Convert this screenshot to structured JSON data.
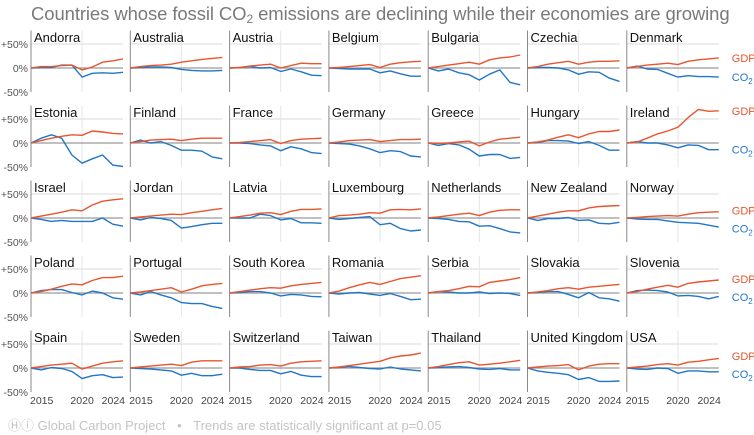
{
  "chart_data": {
    "type": "line",
    "title_pre": "Countries whose fossil CO",
    "title_sub": "2",
    "title_post": " emissions are declining while their economies are growing",
    "years": [
      2015,
      2016,
      2017,
      2018,
      2019,
      2020,
      2021,
      2022,
      2023,
      2024
    ],
    "ylim": [
      -50,
      80
    ],
    "yticks": [
      {
        "value": 50,
        "label": "+50%"
      },
      {
        "value": 0,
        "label": "0%"
      },
      {
        "value": -50,
        "label": "-50%"
      }
    ],
    "xticks": [
      {
        "value": 2015,
        "label": "2015"
      },
      {
        "value": 2020,
        "label": "2020"
      },
      {
        "value": 2024,
        "label": "2024"
      }
    ],
    "grid": true,
    "legend": {
      "gdp": "GDP",
      "co2": "CO",
      "co2_sub": "2",
      "placement": "right of each row"
    },
    "colors": {
      "gdp": "#e8552e",
      "co2": "#2176c7",
      "grid": "#e6e6e6",
      "zero": "#9a9a9a",
      "axis": "#8a8a8a"
    },
    "panels": [
      {
        "country": "Andorra",
        "gdp": [
          0,
          3,
          3,
          5,
          6,
          -4,
          2,
          12,
          15,
          19
        ],
        "co2": [
          0,
          1,
          1,
          6,
          6,
          -19,
          -11,
          -10,
          -11,
          -9
        ]
      },
      {
        "country": "Australia",
        "gdp": [
          0,
          3,
          5,
          6,
          8,
          12,
          15,
          18,
          20,
          22
        ],
        "co2": [
          0,
          1,
          2,
          2,
          1,
          -3,
          -5,
          -6,
          -6,
          -5
        ]
      },
      {
        "country": "Austria",
        "gdp": [
          0,
          1,
          4,
          6,
          8,
          0,
          5,
          10,
          9,
          9
        ],
        "co2": [
          0,
          1,
          3,
          0,
          1,
          -7,
          -2,
          -8,
          -15,
          -16
        ]
      },
      {
        "country": "Belgium",
        "gdp": [
          0,
          1,
          3,
          5,
          7,
          1,
          8,
          11,
          13,
          14
        ],
        "co2": [
          0,
          -1,
          -2,
          -2,
          -2,
          -10,
          -6,
          -12,
          -17,
          -17
        ]
      },
      {
        "country": "Bulgaria",
        "gdp": [
          0,
          3,
          6,
          9,
          12,
          8,
          17,
          21,
          23,
          27
        ],
        "co2": [
          0,
          -6,
          -2,
          -10,
          -14,
          -25,
          -13,
          -4,
          -30,
          -35
        ]
      },
      {
        "country": "Czechia",
        "gdp": [
          0,
          3,
          8,
          11,
          14,
          8,
          12,
          14,
          14,
          15
        ],
        "co2": [
          0,
          1,
          1,
          0,
          -4,
          -13,
          -8,
          -9,
          -21,
          -28
        ]
      },
      {
        "country": "Denmark",
        "gdp": [
          0,
          3,
          6,
          8,
          10,
          7,
          14,
          17,
          19,
          21
        ],
        "co2": [
          0,
          4,
          -2,
          -3,
          -11,
          -19,
          -16,
          -18,
          -18,
          -19
        ]
      },
      {
        "country": "Estonia",
        "gdp": [
          0,
          5,
          10,
          14,
          17,
          16,
          25,
          23,
          20,
          19
        ],
        "co2": [
          0,
          10,
          17,
          10,
          -25,
          -42,
          -33,
          -25,
          -46,
          -49
        ]
      },
      {
        "country": "Finland",
        "gdp": [
          0,
          3,
          6,
          7,
          8,
          5,
          8,
          10,
          10,
          10
        ],
        "co2": [
          0,
          6,
          0,
          3,
          -5,
          -15,
          -15,
          -17,
          -29,
          -33
        ]
      },
      {
        "country": "France",
        "gdp": [
          0,
          1,
          3,
          5,
          7,
          -1,
          5,
          8,
          9,
          10
        ],
        "co2": [
          0,
          0,
          -1,
          -4,
          -6,
          -16,
          -8,
          -12,
          -20,
          -22
        ]
      },
      {
        "country": "Germany",
        "gdp": [
          0,
          2,
          5,
          6,
          7,
          3,
          5,
          7,
          7,
          8
        ],
        "co2": [
          0,
          -1,
          -2,
          -6,
          -12,
          -20,
          -16,
          -18,
          -27,
          -29
        ]
      },
      {
        "country": "Greece",
        "gdp": [
          0,
          -1,
          0,
          2,
          4,
          -6,
          2,
          8,
          10,
          12
        ],
        "co2": [
          0,
          -5,
          -1,
          -4,
          -13,
          -27,
          -24,
          -24,
          -32,
          -30
        ]
      },
      {
        "country": "Hungary",
        "gdp": [
          0,
          2,
          6,
          12,
          17,
          11,
          19,
          24,
          24,
          27
        ],
        "co2": [
          0,
          1,
          5,
          5,
          4,
          -1,
          3,
          -5,
          -15,
          -15
        ]
      },
      {
        "country": "Ireland",
        "gdp": [
          0,
          2,
          10,
          19,
          25,
          33,
          53,
          70,
          66,
          67
        ],
        "co2": [
          0,
          3,
          0,
          0,
          -4,
          -10,
          -4,
          -5,
          -14,
          -14
        ]
      },
      {
        "country": "Israel",
        "gdp": [
          0,
          4,
          8,
          12,
          17,
          15,
          27,
          35,
          38,
          40
        ],
        "co2": [
          0,
          -3,
          -7,
          -5,
          -7,
          -7,
          -7,
          0,
          -13,
          -17
        ]
      },
      {
        "country": "Jordan",
        "gdp": [
          0,
          2,
          4,
          6,
          8,
          7,
          11,
          14,
          17,
          20
        ],
        "co2": [
          0,
          -4,
          1,
          -1,
          -5,
          -21,
          -18,
          -14,
          -11,
          -11
        ]
      },
      {
        "country": "Latvia",
        "gdp": [
          0,
          3,
          6,
          10,
          11,
          7,
          14,
          18,
          18,
          19
        ],
        "co2": [
          0,
          0,
          0,
          8,
          5,
          -4,
          -1,
          -10,
          -10,
          -11
        ]
      },
      {
        "country": "Luxembourg",
        "gdp": [
          0,
          5,
          6,
          8,
          11,
          10,
          17,
          18,
          17,
          19
        ],
        "co2": [
          0,
          -3,
          -1,
          1,
          3,
          -14,
          -11,
          -22,
          -27,
          -25
        ]
      },
      {
        "country": "Netherlands",
        "gdp": [
          0,
          2,
          5,
          8,
          10,
          5,
          12,
          16,
          17,
          17
        ],
        "co2": [
          0,
          -1,
          -3,
          -7,
          -8,
          -17,
          -16,
          -22,
          -29,
          -31
        ]
      },
      {
        "country": "New Zealand",
        "gdp": [
          0,
          4,
          8,
          12,
          15,
          15,
          21,
          24,
          25,
          26
        ],
        "co2": [
          0,
          -5,
          -1,
          -1,
          1,
          -5,
          -4,
          -11,
          -12,
          -9
        ]
      },
      {
        "country": "Norway",
        "gdp": [
          0,
          1,
          3,
          4,
          5,
          4,
          8,
          11,
          12,
          13
        ],
        "co2": [
          0,
          -2,
          -3,
          -3,
          -6,
          -9,
          -10,
          -11,
          -15,
          -19
        ]
      },
      {
        "country": "Poland",
        "gdp": [
          0,
          3,
          8,
          14,
          19,
          17,
          26,
          32,
          32,
          35
        ],
        "co2": [
          0,
          5,
          7,
          7,
          1,
          -4,
          4,
          0,
          -10,
          -13
        ]
      },
      {
        "country": "Portugal",
        "gdp": [
          0,
          2,
          5,
          8,
          11,
          2,
          8,
          15,
          18,
          20
        ],
        "co2": [
          0,
          -4,
          3,
          -4,
          -10,
          -20,
          -22,
          -22,
          -28,
          -32
        ]
      },
      {
        "country": "South Korea",
        "gdp": [
          0,
          3,
          6,
          9,
          11,
          10,
          15,
          18,
          20,
          22
        ],
        "co2": [
          0,
          1,
          3,
          3,
          0,
          -6,
          -3,
          -4,
          -7,
          -8
        ]
      },
      {
        "country": "Romania",
        "gdp": [
          0,
          4,
          11,
          17,
          22,
          18,
          24,
          30,
          33,
          36
        ],
        "co2": [
          0,
          -2,
          0,
          1,
          -2,
          -5,
          -1,
          -7,
          -14,
          -13
        ]
      },
      {
        "country": "Serbia",
        "gdp": [
          0,
          3,
          5,
          9,
          14,
          13,
          22,
          25,
          28,
          32
        ],
        "co2": [
          0,
          3,
          2,
          0,
          0,
          2,
          -1,
          0,
          -1,
          -5
        ]
      },
      {
        "country": "Slovakia",
        "gdp": [
          0,
          2,
          5,
          9,
          11,
          8,
          12,
          14,
          16,
          18
        ],
        "co2": [
          0,
          1,
          3,
          3,
          -3,
          -10,
          1,
          -10,
          -12,
          -17
        ]
      },
      {
        "country": "Slovenia",
        "gdp": [
          0,
          3,
          8,
          12,
          16,
          12,
          20,
          23,
          25,
          27
        ],
        "co2": [
          0,
          5,
          6,
          5,
          2,
          -6,
          -5,
          -7,
          -12,
          -7
        ]
      },
      {
        "country": "Spain",
        "gdp": [
          0,
          3,
          6,
          8,
          10,
          -2,
          4,
          10,
          13,
          15
        ],
        "co2": [
          0,
          -4,
          1,
          -1,
          -7,
          -22,
          -16,
          -14,
          -20,
          -19
        ]
      },
      {
        "country": "Sweden",
        "gdp": [
          0,
          2,
          4,
          6,
          8,
          5,
          12,
          15,
          15,
          15
        ],
        "co2": [
          0,
          -1,
          -2,
          -4,
          -6,
          -15,
          -11,
          -16,
          -16,
          -13
        ]
      },
      {
        "country": "Switzerland",
        "gdp": [
          0,
          2,
          3,
          6,
          7,
          4,
          10,
          13,
          14,
          15
        ],
        "co2": [
          0,
          0,
          -3,
          -5,
          -5,
          -12,
          -7,
          -15,
          -18,
          -18
        ]
      },
      {
        "country": "Taiwan",
        "gdp": [
          0,
          2,
          5,
          8,
          11,
          14,
          21,
          25,
          27,
          31
        ],
        "co2": [
          0,
          1,
          3,
          1,
          -1,
          -2,
          2,
          -2,
          -4,
          -6
        ]
      },
      {
        "country": "Thailand",
        "gdp": [
          0,
          3,
          7,
          11,
          13,
          6,
          8,
          10,
          13,
          16
        ],
        "co2": [
          0,
          1,
          2,
          3,
          1,
          -2,
          -3,
          -1,
          -4,
          -4
        ]
      },
      {
        "country": "United Kingdom",
        "gdp": [
          0,
          2,
          4,
          5,
          7,
          -4,
          4,
          8,
          9,
          9
        ],
        "co2": [
          0,
          -6,
          -9,
          -11,
          -14,
          -24,
          -20,
          -28,
          -28,
          -27
        ]
      },
      {
        "country": "USA",
        "gdp": [
          0,
          2,
          4,
          7,
          9,
          6,
          12,
          14,
          17,
          20
        ],
        "co2": [
          0,
          -2,
          -3,
          0,
          -1,
          -11,
          -6,
          -6,
          -8,
          -8
        ]
      }
    ]
  },
  "footer": {
    "source": "Global Carbon Project",
    "separator": "•",
    "note": "Trends are statistically significant at p=0.05"
  }
}
